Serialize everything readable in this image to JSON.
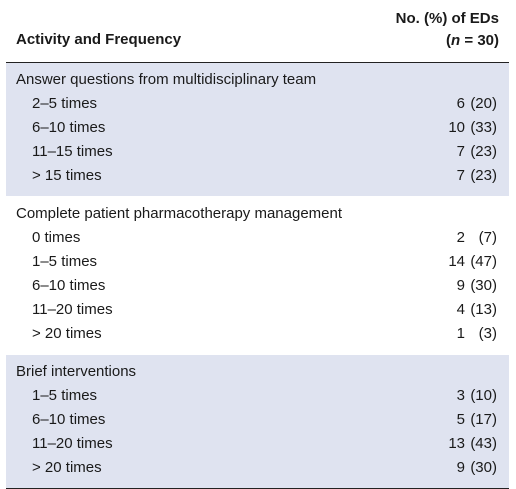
{
  "header": {
    "col1": "Activity and Frequency",
    "col2_line1": "No. (%) of EDs",
    "col2_open": "(",
    "col2_n": "n",
    "col2_rest": " = 30)"
  },
  "sections": [
    {
      "title": "Answer questions from multidisciplinary team",
      "rows": [
        {
          "label": "2–5 times",
          "count": "6",
          "pct": "(20)"
        },
        {
          "label": "6–10 times",
          "count": "10",
          "pct": "(33)"
        },
        {
          "label": "11–15 times",
          "count": "7",
          "pct": "(23)"
        },
        {
          "label": "> 15 times",
          "count": "7",
          "pct": "(23)"
        }
      ]
    },
    {
      "title": "Complete patient pharmacotherapy management",
      "rows": [
        {
          "label": "0 times",
          "count": "2",
          "pct": "(7)"
        },
        {
          "label": "1–5 times",
          "count": "14",
          "pct": "(47)"
        },
        {
          "label": "6–10 times",
          "count": "9",
          "pct": "(30)"
        },
        {
          "label": "11–20 times",
          "count": "4",
          "pct": "(13)"
        },
        {
          "label": "> 20 times",
          "count": "1",
          "pct": "(3)"
        }
      ]
    },
    {
      "title": "Brief interventions",
      "rows": [
        {
          "label": "1–5 times",
          "count": "3",
          "pct": "(10)"
        },
        {
          "label": "6–10 times",
          "count": "5",
          "pct": "(17)"
        },
        {
          "label": "11–20 times",
          "count": "13",
          "pct": "(43)"
        },
        {
          "label": "> 20 times",
          "count": "9",
          "pct": "(30)"
        }
      ]
    }
  ]
}
